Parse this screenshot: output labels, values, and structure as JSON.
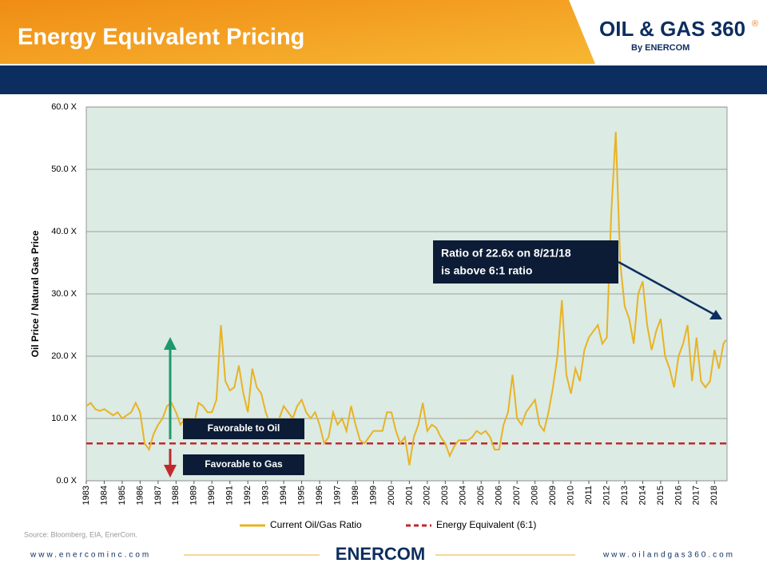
{
  "header": {
    "title": "Energy Equivalent Pricing",
    "logo": "OIL & GAS 360",
    "logo_mark": "®",
    "logo_sub": "By ENERCOM"
  },
  "chart_data": {
    "type": "line",
    "ylabel": "Oil Price / Natural Gas Price",
    "x": [
      1983,
      1983.25,
      1983.5,
      1983.75,
      1984,
      1984.25,
      1984.5,
      1984.75,
      1985,
      1985.25,
      1985.5,
      1985.75,
      1986,
      1986.25,
      1986.5,
      1986.75,
      1987,
      1987.25,
      1987.5,
      1987.75,
      1988,
      1988.25,
      1988.5,
      1988.75,
      1989,
      1989.25,
      1989.5,
      1989.75,
      1990,
      1990.25,
      1990.5,
      1990.75,
      1991,
      1991.25,
      1991.5,
      1991.75,
      1992,
      1992.25,
      1992.5,
      1992.75,
      1993,
      1993.25,
      1993.5,
      1993.75,
      1994,
      1994.25,
      1994.5,
      1994.75,
      1995,
      1995.25,
      1995.5,
      1995.75,
      1996,
      1996.25,
      1996.5,
      1996.75,
      1997,
      1997.25,
      1997.5,
      1997.75,
      1998,
      1998.25,
      1998.5,
      1998.75,
      1999,
      1999.25,
      1999.5,
      1999.75,
      2000,
      2000.25,
      2000.5,
      2000.75,
      2001,
      2001.25,
      2001.5,
      2001.75,
      2002,
      2002.25,
      2002.5,
      2002.75,
      2003,
      2003.25,
      2003.5,
      2003.75,
      2004,
      2004.25,
      2004.5,
      2004.75,
      2005,
      2005.25,
      2005.5,
      2005.75,
      2006,
      2006.25,
      2006.5,
      2006.75,
      2007,
      2007.25,
      2007.5,
      2007.75,
      2008,
      2008.25,
      2008.5,
      2008.75,
      2009,
      2009.25,
      2009.5,
      2009.75,
      2010,
      2010.25,
      2010.5,
      2010.75,
      2011,
      2011.25,
      2011.5,
      2011.75,
      2012,
      2012.25,
      2012.5,
      2012.75,
      2013,
      2013.25,
      2013.5,
      2013.75,
      2014,
      2014.25,
      2014.5,
      2014.75,
      2015,
      2015.25,
      2015.5,
      2015.75,
      2016,
      2016.25,
      2016.5,
      2016.75,
      2017,
      2017.25,
      2017.5,
      2017.75,
      2018,
      2018.25,
      2018.5,
      2018.64
    ],
    "series": [
      {
        "name": "Current Oil/Gas Ratio",
        "color": "#e8b325",
        "values": [
          12,
          12.5,
          11.5,
          11.2,
          11.5,
          11,
          10.5,
          11,
          10,
          10.5,
          11,
          12.5,
          11,
          6,
          5,
          7.5,
          9,
          10,
          12,
          12.5,
          11,
          9,
          10,
          10,
          9,
          12.5,
          12,
          11,
          11,
          13,
          25,
          16,
          14.5,
          15,
          18.5,
          14,
          11,
          18,
          15,
          14,
          11,
          9,
          8,
          10,
          12,
          11,
          10,
          12,
          13,
          11,
          10,
          11,
          9,
          6,
          7,
          11,
          9,
          10,
          8,
          12,
          9,
          6.5,
          6,
          7,
          8,
          8,
          8,
          11,
          11,
          8,
          6,
          7,
          2.5,
          7,
          9,
          12.5,
          8,
          9,
          8.5,
          7,
          6,
          4,
          5.5,
          6.5,
          6.5,
          6.5,
          7,
          8,
          7.5,
          8,
          7,
          5,
          5,
          9,
          11,
          17,
          10,
          9,
          11,
          12,
          13,
          9,
          8,
          11,
          15,
          20,
          29,
          17,
          14,
          18,
          16,
          21,
          23,
          24,
          25,
          22,
          23,
          43,
          56,
          35,
          28,
          26,
          22,
          30,
          32,
          25,
          21,
          24,
          26,
          20,
          18,
          15,
          20,
          22,
          25,
          16,
          23,
          16,
          15,
          16,
          21,
          18,
          22,
          22.6
        ]
      }
    ],
    "reference": {
      "name": "Energy Equivalent (6:1)",
      "value": 6,
      "color": "#c0282d"
    },
    "xlim": [
      1983,
      2018.7
    ],
    "xticks": [
      1983,
      1984,
      1985,
      1986,
      1987,
      1988,
      1989,
      1990,
      1991,
      1992,
      1993,
      1994,
      1995,
      1996,
      1997,
      1998,
      1999,
      2000,
      2001,
      2002,
      2003,
      2004,
      2005,
      2006,
      2007,
      2008,
      2009,
      2010,
      2011,
      2012,
      2013,
      2014,
      2015,
      2016,
      2017,
      2018
    ],
    "ylim": [
      0,
      60
    ],
    "yticks": [
      {
        "value": 0,
        "label": "0.0 X"
      },
      {
        "value": 10,
        "label": "10.0 X"
      },
      {
        "value": 20,
        "label": "20.0 X"
      },
      {
        "value": 30,
        "label": "30.0 X"
      },
      {
        "value": 40,
        "label": "40.0 X"
      },
      {
        "value": 50,
        "label": "50.0 X"
      },
      {
        "value": 60,
        "label": "60.0 X"
      }
    ],
    "grid": true,
    "annotations": {
      "callout": [
        "Ratio of 22.6x on 8/21/18",
        "is above 6:1 ratio"
      ],
      "oil": "Favorable to Oil",
      "gas": "Favorable to Gas"
    }
  },
  "footer": {
    "source": "Source: Bloomberg, EIA, EnerCom.",
    "left_url": "www.enercominc.com",
    "right_url": "www.oilandgas360.com",
    "brand": "ENERCOM"
  }
}
